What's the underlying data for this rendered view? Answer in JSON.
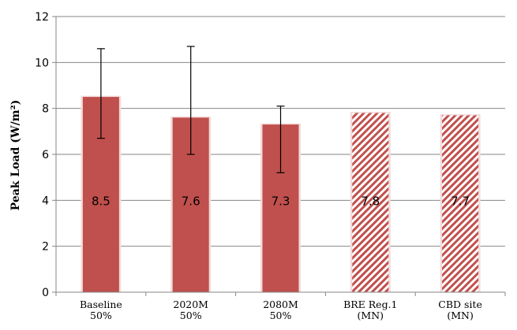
{
  "chart_data": {
    "type": "bar",
    "categories": [
      [
        "Baseline",
        "50%"
      ],
      [
        "2020M",
        "50%"
      ],
      [
        "2080M",
        "50%"
      ],
      [
        "BRE Reg.1",
        "(MN)"
      ],
      [
        "CBD site",
        "(MN)"
      ]
    ],
    "values": [
      8.5,
      7.6,
      7.3,
      7.8,
      7.7
    ],
    "data_labels": [
      "8.5",
      "7.6",
      "7.3",
      "7.8",
      "7.7"
    ],
    "error_bars": [
      [
        6.7,
        10.6
      ],
      [
        6.0,
        10.7
      ],
      [
        5.2,
        8.1
      ],
      null,
      null
    ],
    "patterns": [
      "solid",
      "solid",
      "solid",
      "hatched",
      "hatched"
    ],
    "ylabel": "Peak Load (W/m²)",
    "ylim": [
      0,
      12
    ],
    "yticks": [
      0,
      2,
      4,
      6,
      8,
      10,
      12
    ],
    "grid": "horizontal",
    "colors": {
      "bar": "#c0504d",
      "hatch_bg": "#ffffff",
      "grid": "#868686"
    }
  }
}
